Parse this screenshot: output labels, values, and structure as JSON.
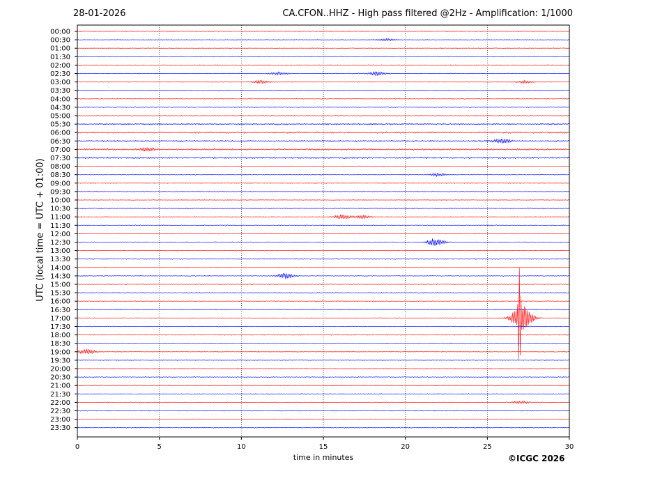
{
  "chart_data": {
    "type": "line",
    "date": "28-01-2026",
    "title": "CA.CFON..HHZ - High pass filtered @2Hz - Amplification: 1/1000",
    "xlabel": "time in minutes",
    "ylabel": "UTC (local time = UTC + 01:00)",
    "xlim": [
      0,
      30
    ],
    "x_ticks": [
      "0",
      "5",
      "10",
      "15",
      "20",
      "25",
      "30"
    ],
    "grid": "vertical dotted at every 5 minutes",
    "trace_colors": [
      "#ff0000",
      "#0000ff"
    ],
    "rows": [
      "00:00",
      "00:30",
      "01:00",
      "01:30",
      "02:00",
      "02:30",
      "03:00",
      "03:30",
      "04:00",
      "04:30",
      "05:00",
      "05:30",
      "06:00",
      "06:30",
      "07:00",
      "07:30",
      "08:00",
      "08:30",
      "09:00",
      "09:30",
      "10:00",
      "10:30",
      "11:00",
      "11:30",
      "12:00",
      "12:30",
      "13:00",
      "13:30",
      "14:00",
      "14:30",
      "15:00",
      "15:30",
      "16:00",
      "16:30",
      "17:00",
      "17:30",
      "18:00",
      "18:30",
      "19:00",
      "19:30",
      "20:00",
      "20:30",
      "21:00",
      "21:30",
      "22:00",
      "22:30",
      "23:00",
      "23:30"
    ],
    "events": [
      {
        "row": "00:30",
        "minute": 18.8,
        "amplitude": 1.5
      },
      {
        "row": "02:30",
        "minute": 12.3,
        "amplitude": 2
      },
      {
        "row": "02:30",
        "minute": 18.3,
        "amplitude": 3
      },
      {
        "row": "03:00",
        "minute": 11.2,
        "amplitude": 2
      },
      {
        "row": "03:00",
        "minute": 27.3,
        "amplitude": 2
      },
      {
        "row": "06:30",
        "minute": 25.9,
        "amplitude": 3
      },
      {
        "row": "07:00",
        "minute": 4.3,
        "amplitude": 2.5
      },
      {
        "row": "08:30",
        "minute": 22.0,
        "amplitude": 2
      },
      {
        "row": "11:00",
        "minute": 16.2,
        "amplitude": 3
      },
      {
        "row": "11:00",
        "minute": 17.4,
        "amplitude": 2
      },
      {
        "row": "12:30",
        "minute": 21.85,
        "amplitude": 6
      },
      {
        "row": "14:30",
        "minute": 12.7,
        "amplitude": 4
      },
      {
        "row": "17:00",
        "minute": 26.8,
        "amplitude": 8
      },
      {
        "row": "17:00",
        "minute": 26.95,
        "amplitude": 65
      },
      {
        "row": "17:00",
        "minute": 27.3,
        "amplitude": 14
      },
      {
        "row": "19:00",
        "minute": 0.6,
        "amplitude": 4
      },
      {
        "row": "22:00",
        "minute": 27.0,
        "amplitude": 2
      }
    ]
  },
  "copyright": "©ICGC 2026"
}
